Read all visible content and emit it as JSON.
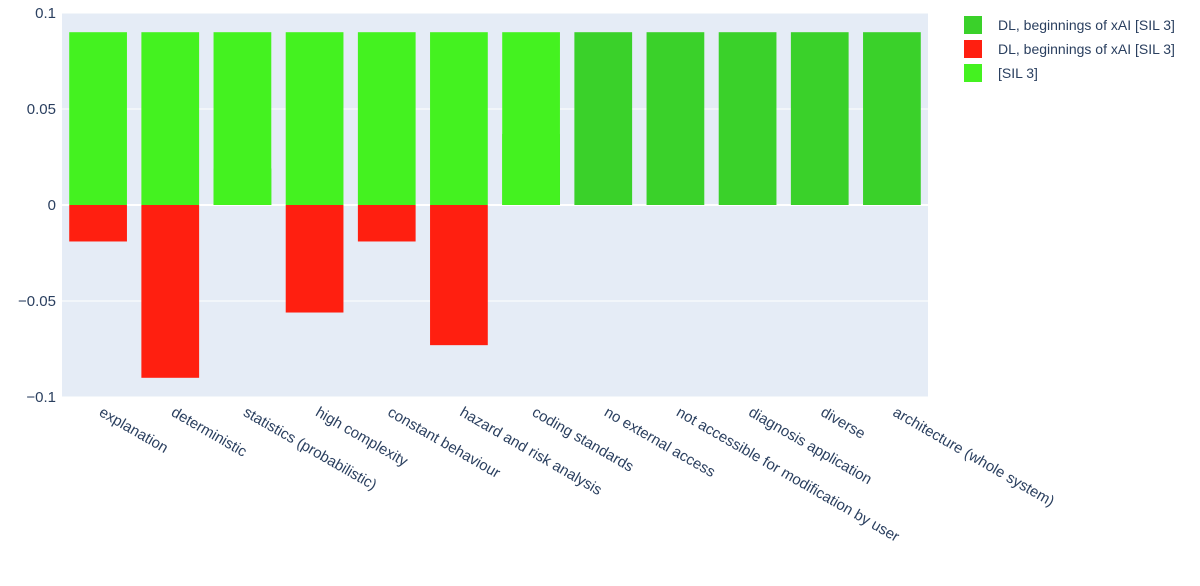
{
  "chart_data": {
    "type": "bar",
    "barmode": "overlay",
    "categories": [
      "explanation",
      "deterministic",
      "statistics (probabilistic)",
      "high complexity",
      "constant behaviour",
      "hazard and risk analysis",
      "coding standards",
      "no external access",
      "not accessible for modification by user",
      "diagnosis application",
      "diverse",
      "architecture (whole system)"
    ],
    "series": [
      {
        "name": "DL, beginnings of xAI [SIL 3]",
        "color": "#3ad12a",
        "values": [
          0,
          0,
          0.019,
          0,
          0,
          0,
          0.037,
          0.09,
          0.09,
          0.09,
          0.09,
          0.09
        ]
      },
      {
        "name": "DL, beginnings of xAI [SIL 3]",
        "color": "#ff1f10",
        "values": [
          -0.019,
          -0.09,
          0,
          -0.056,
          -0.019,
          -0.073,
          0,
          0,
          0,
          0,
          0,
          0
        ]
      },
      {
        "name": "[SIL 3]",
        "color": "#44f220",
        "values": [
          0.09,
          0.09,
          0.09,
          0.09,
          0.09,
          0.09,
          0.09,
          0,
          0,
          0,
          0,
          0
        ]
      }
    ],
    "y_ticks": [
      0.1,
      0.05,
      0,
      -0.05,
      -0.1
    ],
    "y_tick_labels": [
      "0.1",
      "0.05",
      "0",
      "−0.05",
      "−0.1"
    ],
    "ylim": [
      -0.1,
      0.1
    ],
    "grid": true,
    "legend_position": "top-right",
    "plot_background": "#e5ecf6",
    "xlabel": "",
    "ylabel": "",
    "title": ""
  }
}
